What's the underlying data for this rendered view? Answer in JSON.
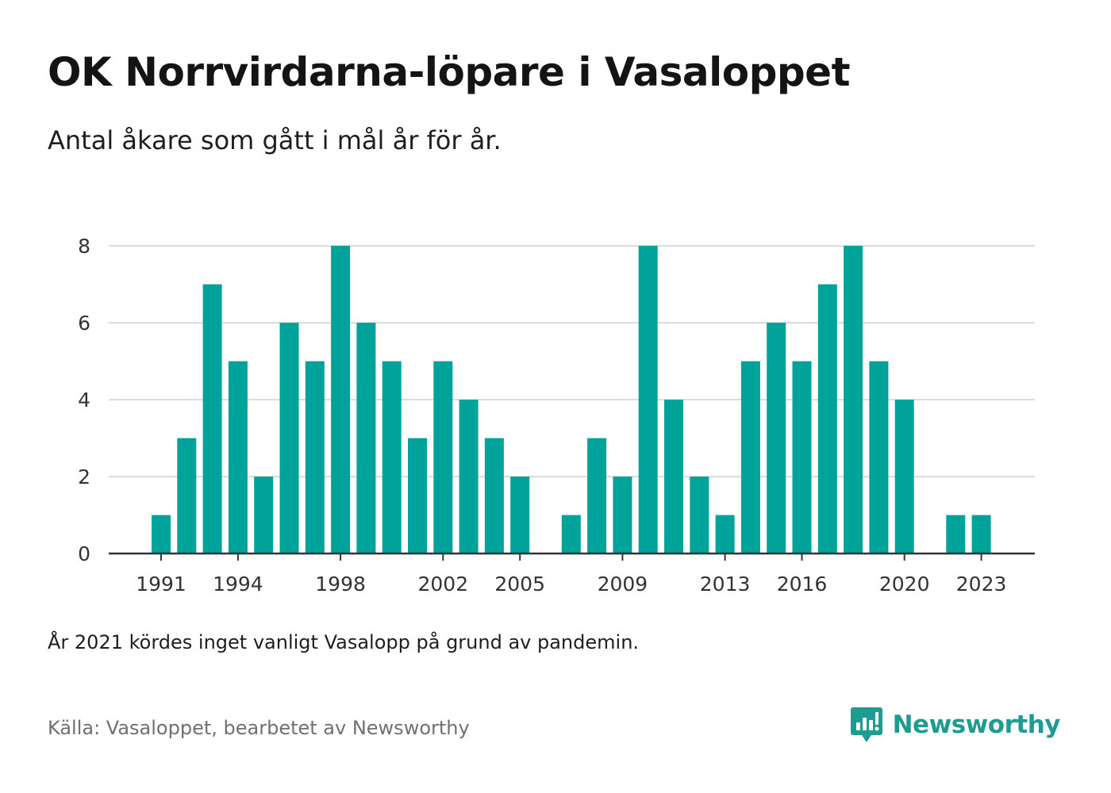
{
  "title": "OK Norrvirdarna-löpare i Vasaloppet",
  "subtitle": "Antal åkare som gått i mål år för år.",
  "note": "År 2021 kördes inget vanligt Vasalopp på grund av pandemin.",
  "source": "Källa: Vasaloppet, bearbetet av Newsworthy",
  "brand": {
    "name": "Newsworthy",
    "icon": "newsworthy-logo-icon"
  },
  "colors": {
    "bar": "#00a39a",
    "grid": "#dcdcdc",
    "axis": "#333333",
    "brand": "#1f9c92"
  },
  "chart_data": {
    "type": "bar",
    "categories": [
      1991,
      1992,
      1993,
      1994,
      1995,
      1996,
      1997,
      1998,
      1999,
      2000,
      2001,
      2002,
      2003,
      2004,
      2005,
      2006,
      2007,
      2008,
      2009,
      2010,
      2011,
      2012,
      2013,
      2014,
      2015,
      2016,
      2017,
      2018,
      2019,
      2020,
      2021,
      2022,
      2023
    ],
    "values": [
      1,
      3,
      7,
      5,
      2,
      6,
      5,
      8,
      6,
      5,
      3,
      5,
      4,
      3,
      2,
      0,
      1,
      3,
      2,
      8,
      4,
      2,
      1,
      5,
      6,
      5,
      7,
      8,
      5,
      4,
      0,
      1,
      1
    ],
    "x_tick_labels": [
      "1991",
      "1994",
      "1998",
      "2002",
      "2005",
      "2009",
      "2013",
      "2016",
      "2020",
      "2023"
    ],
    "y_ticks": [
      0,
      2,
      4,
      6,
      8
    ],
    "ylim": [
      0,
      8
    ],
    "xlabel": "",
    "ylabel": "",
    "grid": true,
    "legend": "none"
  }
}
